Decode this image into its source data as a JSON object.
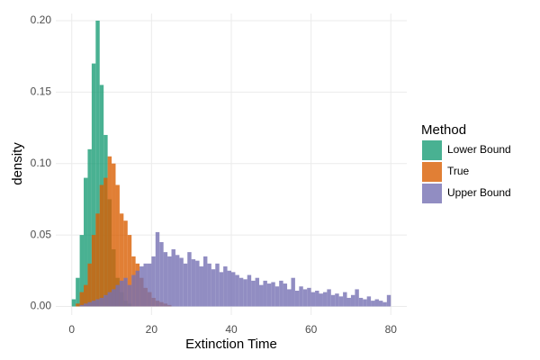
{
  "chart_data": {
    "type": "histogram",
    "xlabel": "Extinction Time",
    "ylabel": "density",
    "legend_title": "Method",
    "legend_position": "right",
    "grid": true,
    "opacity": 0.8,
    "bins": [
      0,
      1,
      2,
      3,
      4,
      5,
      6,
      7,
      8,
      9,
      10,
      11,
      12,
      13,
      14,
      15,
      16,
      17,
      18,
      19,
      20,
      21,
      22,
      23,
      24,
      25,
      26,
      27,
      28,
      29,
      30,
      31,
      32,
      33,
      34,
      35,
      36,
      37,
      38,
      39,
      40,
      41,
      42,
      43,
      44,
      45,
      46,
      47,
      48,
      49,
      50,
      51,
      52,
      53,
      54,
      55,
      56,
      57,
      58,
      59,
      60,
      61,
      62,
      63,
      64,
      65,
      66,
      67,
      68,
      69,
      70,
      71,
      72,
      73,
      74,
      75,
      76,
      77,
      78,
      79,
      80
    ],
    "series": [
      {
        "name": "Lower Bound",
        "color": "#1b9e77",
        "values": [
          0.005,
          0.02,
          0.05,
          0.09,
          0.11,
          0.17,
          0.2,
          0.155,
          0.12,
          0.075,
          0.04,
          0.02,
          0.01,
          0.004,
          0.002,
          0,
          0,
          0,
          0,
          0,
          0,
          0,
          0,
          0,
          0,
          0,
          0,
          0,
          0,
          0,
          0,
          0,
          0,
          0,
          0,
          0,
          0,
          0,
          0,
          0,
          0,
          0,
          0,
          0,
          0,
          0,
          0,
          0,
          0,
          0,
          0,
          0,
          0,
          0,
          0,
          0,
          0,
          0,
          0,
          0,
          0,
          0,
          0,
          0,
          0,
          0,
          0,
          0,
          0,
          0,
          0,
          0,
          0,
          0,
          0,
          0,
          0,
          0,
          0,
          0
        ]
      },
      {
        "name": "True",
        "color": "#d95f02",
        "values": [
          0,
          0.002,
          0.01,
          0.015,
          0.03,
          0.05,
          0.065,
          0.085,
          0.09,
          0.105,
          0.1,
          0.085,
          0.065,
          0.06,
          0.05,
          0.035,
          0.03,
          0.02,
          0.013,
          0.01,
          0.006,
          0.004,
          0.003,
          0.002,
          0.001,
          0,
          0,
          0,
          0,
          0,
          0,
          0,
          0,
          0,
          0,
          0,
          0,
          0,
          0,
          0,
          0,
          0,
          0,
          0,
          0,
          0,
          0,
          0,
          0,
          0,
          0,
          0,
          0,
          0,
          0,
          0,
          0,
          0,
          0,
          0,
          0,
          0,
          0,
          0,
          0,
          0,
          0,
          0,
          0,
          0,
          0,
          0,
          0,
          0,
          0,
          0,
          0,
          0,
          0,
          0
        ]
      },
      {
        "name": "Upper Bound",
        "color": "#7570b3",
        "values": [
          0,
          0,
          0.001,
          0.002,
          0.003,
          0.004,
          0.005,
          0.006,
          0.008,
          0.01,
          0.012,
          0.015,
          0.018,
          0.02,
          0.015,
          0.022,
          0.025,
          0.028,
          0.03,
          0.03,
          0.035,
          0.052,
          0.045,
          0.038,
          0.035,
          0.04,
          0.036,
          0.034,
          0.03,
          0.038,
          0.033,
          0.032,
          0.028,
          0.035,
          0.03,
          0.026,
          0.03,
          0.024,
          0.028,
          0.025,
          0.024,
          0.022,
          0.02,
          0.019,
          0.022,
          0.018,
          0.02,
          0.015,
          0.018,
          0.016,
          0.017,
          0.014,
          0.018,
          0.016,
          0.012,
          0.02,
          0.011,
          0.014,
          0.012,
          0.013,
          0.01,
          0.011,
          0.009,
          0.01,
          0.012,
          0.008,
          0.009,
          0.007,
          0.01,
          0.006,
          0.008,
          0.012,
          0.006,
          0.005,
          0.007,
          0.004,
          0.005,
          0.004,
          0.003,
          0.008
        ]
      }
    ],
    "xlim": [
      -4,
      84
    ],
    "xticks": [
      0,
      20,
      40,
      60,
      80
    ],
    "ylim": [
      -0.006,
      0.205
    ],
    "yticks": [
      {
        "value": 0,
        "label": "0.00"
      },
      {
        "value": 0.05,
        "label": "0.05"
      },
      {
        "value": 0.1,
        "label": "0.10"
      },
      {
        "value": 0.15,
        "label": "0.15"
      },
      {
        "value": 0.2,
        "label": "0.20"
      }
    ]
  }
}
